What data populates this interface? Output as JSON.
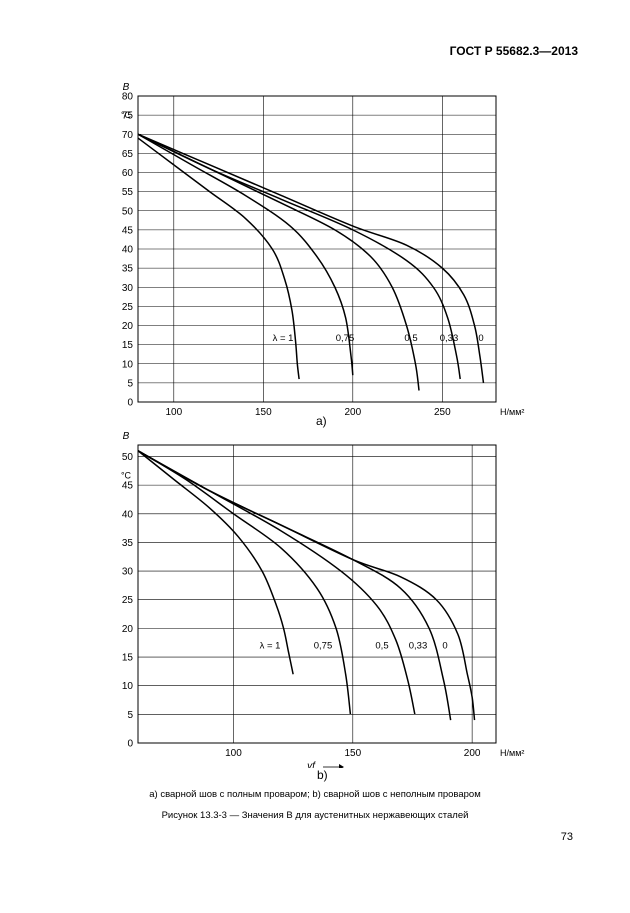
{
  "header": {
    "standard": "ГОСТ Р 55682.3—2013"
  },
  "captions": {
    "sub": "а) сварной шов с полным проваром; b) сварной шов с неполным проваром",
    "figure": "Рисунок 13.3-3 — Значения B для аустенитных нержавеющих сталей"
  },
  "page_number": "73",
  "chart_data": [
    {
      "type": "line",
      "panel_label": "а)",
      "ylabel": "B",
      "yunit": "°C",
      "xunit": "Н/мм²",
      "xlabel": "",
      "xlim": [
        80,
        280
      ],
      "ylim": [
        0,
        80
      ],
      "x_ticks": [
        100,
        150,
        200,
        250
      ],
      "y_ticks": [
        0,
        5,
        10,
        15,
        20,
        25,
        30,
        35,
        40,
        45,
        50,
        55,
        60,
        65,
        70,
        75,
        80
      ],
      "grid": true,
      "series": [
        {
          "name": "λ = 1",
          "x": [
            80,
            100,
            120,
            140,
            155,
            162,
            166,
            168,
            169,
            170
          ],
          "y": [
            69,
            62,
            55,
            48,
            40,
            32,
            24,
            16,
            10,
            6
          ]
        },
        {
          "name": "0,75",
          "x": [
            80,
            110,
            140,
            165,
            180,
            190,
            196,
            199,
            200
          ],
          "y": [
            70,
            62,
            54,
            46,
            38,
            30,
            22,
            12,
            7
          ]
        },
        {
          "name": "0,5",
          "x": [
            80,
            120,
            160,
            190,
            210,
            222,
            230,
            235,
            237
          ],
          "y": [
            70,
            61,
            52,
            45,
            38,
            30,
            20,
            10,
            3
          ]
        },
        {
          "name": "0,33",
          "x": [
            80,
            120,
            160,
            200,
            230,
            245,
            253,
            258,
            260
          ],
          "y": [
            70,
            61,
            53,
            45,
            37,
            30,
            22,
            12,
            6
          ]
        },
        {
          "name": "0",
          "x": [
            80,
            120,
            160,
            200,
            230,
            250,
            262,
            268,
            271,
            273
          ],
          "y": [
            70,
            62,
            54,
            46,
            41,
            35,
            28,
            20,
            12,
            5
          ]
        }
      ],
      "series_labels_y": 16
    },
    {
      "type": "line",
      "panel_label": "b)",
      "ylabel": "B",
      "yunit": "°C",
      "xunit": "Н/мм²",
      "xlabel": "γf",
      "xlim": [
        60,
        210
      ],
      "ylim": [
        0,
        52
      ],
      "x_ticks": [
        100,
        150,
        200
      ],
      "y_ticks": [
        0,
        5,
        10,
        15,
        20,
        25,
        30,
        35,
        40,
        45,
        50
      ],
      "grid": true,
      "series": [
        {
          "name": "λ = 1",
          "x": [
            60,
            75,
            90,
            102,
            112,
            118,
            121,
            123,
            124,
            125
          ],
          "y": [
            51,
            46,
            41,
            36,
            30,
            24,
            20,
            16,
            14,
            12
          ]
        },
        {
          "name": "0,75",
          "x": [
            60,
            80,
            100,
            120,
            135,
            143,
            147,
            149
          ],
          "y": [
            51,
            46,
            40,
            34,
            27,
            20,
            12,
            5
          ]
        },
        {
          "name": "0,5",
          "x": [
            60,
            90,
            120,
            145,
            160,
            168,
            173,
            176
          ],
          "y": [
            51,
            44,
            37,
            30,
            24,
            18,
            11,
            5
          ]
        },
        {
          "name": "0,33",
          "x": [
            60,
            90,
            120,
            150,
            170,
            182,
            188,
            191
          ],
          "y": [
            51,
            44,
            38,
            32,
            27,
            20,
            11,
            4
          ]
        },
        {
          "name": "0",
          "x": [
            60,
            90,
            120,
            150,
            170,
            185,
            194,
            198,
            200,
            201
          ],
          "y": [
            51,
            44,
            38,
            32,
            29,
            25,
            19,
            12,
            8,
            4
          ]
        }
      ],
      "series_labels_y": 16.5
    }
  ]
}
